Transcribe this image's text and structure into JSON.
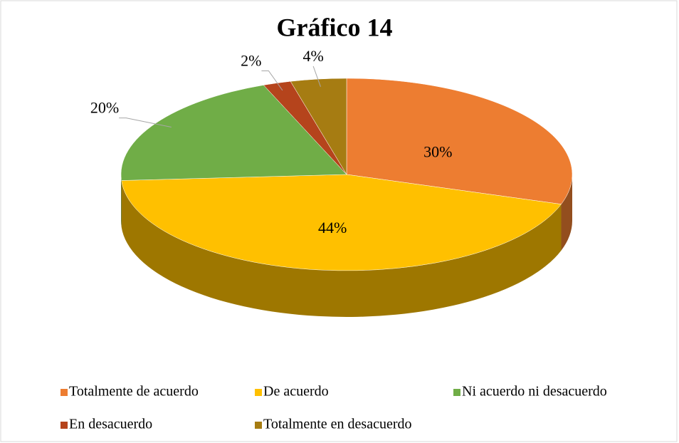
{
  "chart_data": {
    "type": "pie",
    "title": "Gráfico 14",
    "categories": [
      "Totalmente de acuerdo",
      "De acuerdo",
      "Ni acuerdo ni desacuerdo",
      "En desacuerdo",
      "Totalmente en desacuerdo"
    ],
    "values": [
      30,
      44,
      20,
      2,
      4
    ],
    "value_labels": [
      "30%",
      "44%",
      "20%",
      "2%",
      "4%"
    ],
    "colors": [
      "#ed7d31",
      "#ffc000",
      "#70ad47",
      "#b5441c",
      "#a67c12"
    ],
    "legend": "bottom"
  }
}
